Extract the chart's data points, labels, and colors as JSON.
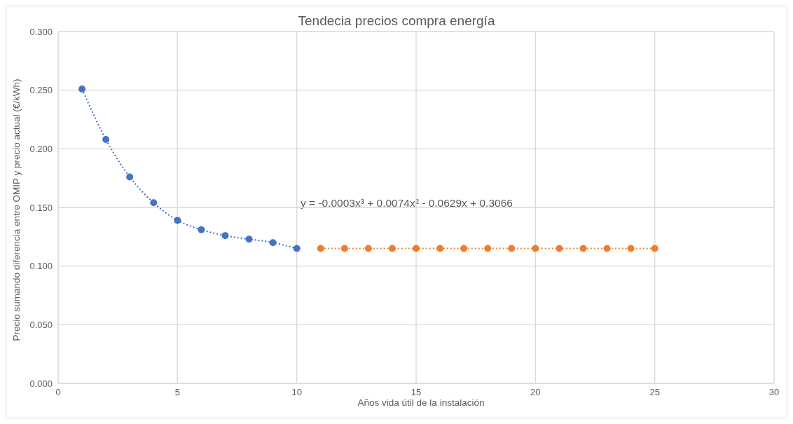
{
  "chart_data": {
    "type": "line",
    "title": "Tendecia precios compra energía",
    "xlabel": "Años vida útil de la instalación",
    "ylabel": "Precio sumando diferencia entre OMIP y precio actual (€/kWh)",
    "annotations": [
      "y = -0.0003x³ + 0.0074x² - 0.0629x + 0.3066"
    ],
    "series": [
      {
        "color": "#4472c4",
        "x": [
          1,
          2,
          3,
          4,
          5,
          6,
          7,
          8,
          9,
          10
        ],
        "values": [
          0.251,
          0.208,
          0.176,
          0.154,
          0.139,
          0.131,
          0.126,
          0.123,
          0.12,
          0.115
        ]
      },
      {
        "color": "#ed7d31",
        "x": [
          11,
          12,
          13,
          14,
          15,
          16,
          17,
          18,
          19,
          20,
          21,
          22,
          23,
          24,
          25
        ],
        "values": [
          0.115,
          0.115,
          0.115,
          0.115,
          0.115,
          0.115,
          0.115,
          0.115,
          0.115,
          0.115,
          0.115,
          0.115,
          0.115,
          0.115,
          0.115
        ]
      }
    ],
    "xlim": [
      0,
      30
    ],
    "xticks": [
      0,
      5,
      10,
      15,
      20,
      25,
      30
    ],
    "ylim": [
      0,
      0.3
    ],
    "yticks": [
      {
        "value": 0,
        "label": "0.000"
      },
      {
        "value": 0.05,
        "label": "0.050"
      },
      {
        "value": 0.1,
        "label": "0.100"
      },
      {
        "value": 0.15,
        "label": "0.150"
      },
      {
        "value": 0.2,
        "label": "0.200"
      },
      {
        "value": 0.25,
        "label": "0.250"
      },
      {
        "value": 0.3,
        "label": "0.300"
      }
    ],
    "grid": true,
    "marker": "circle",
    "line_style": "dotted"
  }
}
